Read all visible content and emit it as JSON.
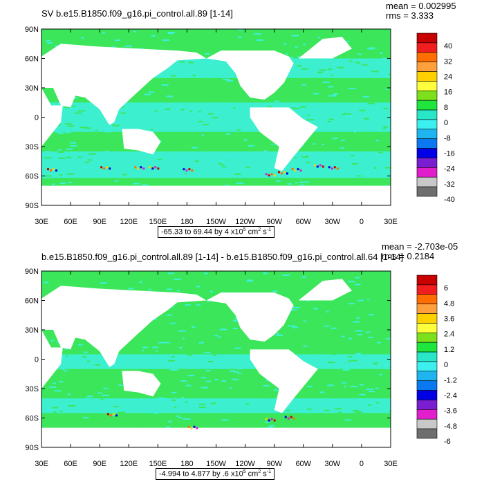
{
  "panels": [
    {
      "title": "SV b.e15.B1850.f09_g16.pi_control.all.89 [1-14]",
      "mean_label": "mean = 0.002995",
      "rms_label": "rms = 3.333",
      "range_text": "-65.33 to 69.44 by 4 x10",
      "range_exp": "5",
      "range_unit": " cm",
      "range_unit_exp": "2",
      "range_s": " s",
      "range_s_exp": "-1",
      "colorbar_labels": [
        "40",
        "32",
        "24",
        "16",
        "8",
        "0",
        "-8",
        "-16",
        "-24",
        "-32",
        "-40"
      ],
      "lat_labels": [
        "90N",
        "60N",
        "30N",
        "0",
        "30S",
        "60S",
        "90S"
      ],
      "lon_labels": [
        "30E",
        "60E",
        "90E",
        "120E",
        "150E",
        "180",
        "150W",
        "120W",
        "90W",
        "60W",
        "30W",
        "0",
        "30E"
      ]
    },
    {
      "title": "b.e15.B1850.f09_g16.pi_control.all.89 [1-14] - b.e15.B1850.f09_g16.pi_control.all.64 [1-14]",
      "mean_label": "mean = -2.703e-05",
      "rms_label": "rms = 0.2184",
      "range_text": "-4.994 to 4.877 by .6 x10",
      "range_exp": "5",
      "range_unit": " cm",
      "range_unit_exp": "2",
      "range_s": " s",
      "range_s_exp": "-1",
      "colorbar_labels": [
        "6",
        "4.8",
        "3.6",
        "2.4",
        "1.2",
        "0",
        "-1.2",
        "-2.4",
        "-3.6",
        "-4.8",
        "-6"
      ],
      "lat_labels": [
        "90N",
        "60N",
        "30N",
        "0",
        "30S",
        "60S",
        "90S"
      ],
      "lon_labels": [
        "30E",
        "60E",
        "90E",
        "120E",
        "150E",
        "180",
        "150W",
        "120W",
        "90W",
        "60W",
        "30W",
        "0",
        "30E"
      ]
    }
  ],
  "colors": {
    "ocean_green": "#3ce65a",
    "ocean_cyan": "#3cf0dc",
    "land": "#ffffff",
    "colorbar": [
      "#c80000",
      "#f01e1e",
      "#ff6e00",
      "#ffa03c",
      "#ffd000",
      "#ffff3c",
      "#7ce01c",
      "#1ee63c",
      "#28e6c8",
      "#3cf0f0",
      "#1eb4f0",
      "#0a78f0",
      "#0000e6",
      "#7a1ed2",
      "#e01ecc",
      "#c8c8c8",
      "#6e6e6e"
    ]
  }
}
